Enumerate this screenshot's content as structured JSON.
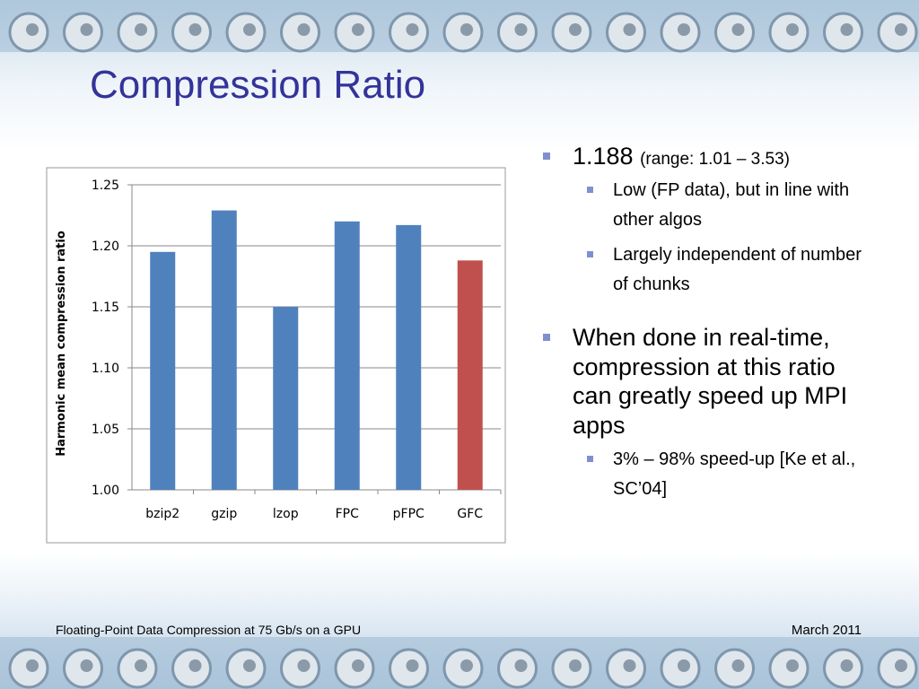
{
  "title": "Compression Ratio",
  "bullets": [
    {
      "text": "1.188",
      "note": "(range: 1.01 – 3.53)",
      "sub": [
        "Low (FP data), but in line with other algos",
        "Largely independent of number of chunks"
      ]
    },
    {
      "text": "When done in real-time, compression at this ratio can greatly speed up MPI apps",
      "sub": [
        "3% – 98% speed-up [Ke et al., SC’04]"
      ]
    }
  ],
  "footer": {
    "left": "Floating-Point Data Compression at 75 Gb/s on a GPU",
    "right": "March 2011"
  },
  "chart_data": {
    "type": "bar",
    "ylabel": "Harmonic mean compression ratio",
    "categories": [
      "bzip2",
      "gzip",
      "lzop",
      "FPC",
      "pFPC",
      "GFC"
    ],
    "values": [
      1.195,
      1.229,
      1.15,
      1.22,
      1.217,
      1.188
    ],
    "colors": [
      "#4f81bd",
      "#4f81bd",
      "#4f81bd",
      "#4f81bd",
      "#4f81bd",
      "#c0504d"
    ],
    "ylim": [
      1.0,
      1.25
    ],
    "yticks": [
      {
        "value": 1.0,
        "label": "1.00"
      },
      1.05,
      {
        "value": 1.1,
        "label": "1.10"
      },
      1.15,
      {
        "value": 1.2,
        "label": "1.20"
      },
      1.25
    ],
    "grid": true
  }
}
